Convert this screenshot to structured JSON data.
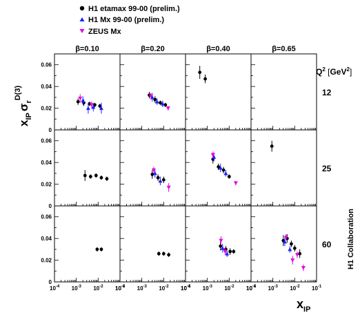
{
  "chart_data": {
    "type": "scatter",
    "title": "",
    "xlabel": "x_IP",
    "ylabel": "x_IP σ_r^D(3)",
    "x_scale": "log",
    "xlim": [
      0.0001,
      0.1
    ],
    "ylim": [
      0,
      0.07
    ],
    "x_tick_labels": [
      "10^-4",
      "10^-3",
      "10^-2",
      "10^-1"
    ],
    "y_tick_labels": [
      "0",
      "0.02",
      "0.04",
      "0.06"
    ],
    "beta_labels": [
      "β=0.10",
      "β=0.20",
      "β=0.40",
      "β=0.65"
    ],
    "q2_header": "Q² [GeV²]",
    "q2_values": [
      "12",
      "25",
      "60"
    ],
    "collaboration_label": "H1 Collaboration",
    "legend_placement": "top-left",
    "series": [
      {
        "name": "H1 etamax 99-00 (prelim.)",
        "marker": "circle",
        "color": "#000000",
        "points": [
          {
            "q2": "12",
            "beta": "0.10",
            "x": 0.0012,
            "y": 0.026,
            "err": 0.003
          },
          {
            "q2": "12",
            "beta": "0.10",
            "x": 0.0022,
            "y": 0.025,
            "err": 0.003
          },
          {
            "q2": "12",
            "beta": "0.10",
            "x": 0.004,
            "y": 0.024,
            "err": 0.002
          },
          {
            "q2": "12",
            "beta": "0.10",
            "x": 0.007,
            "y": 0.023,
            "err": 0.002
          },
          {
            "q2": "12",
            "beta": "0.10",
            "x": 0.012,
            "y": 0.022,
            "err": 0.002
          },
          {
            "q2": "12",
            "beta": "0.20",
            "x": 0.0022,
            "y": 0.032,
            "err": 0.003
          },
          {
            "q2": "12",
            "beta": "0.20",
            "x": 0.004,
            "y": 0.028,
            "err": 0.003
          },
          {
            "q2": "12",
            "beta": "0.20",
            "x": 0.007,
            "y": 0.025,
            "err": 0.002
          },
          {
            "q2": "12",
            "beta": "0.20",
            "x": 0.012,
            "y": 0.023,
            "err": 0.002
          },
          {
            "q2": "12",
            "beta": "0.40",
            "x": 0.00045,
            "y": 0.053,
            "err": 0.006
          },
          {
            "q2": "12",
            "beta": "0.40",
            "x": 0.0008,
            "y": 0.047,
            "err": 0.004
          },
          {
            "q2": "25",
            "beta": "0.10",
            "x": 0.0025,
            "y": 0.028,
            "err": 0.005
          },
          {
            "q2": "25",
            "beta": "0.10",
            "x": 0.0045,
            "y": 0.027,
            "err": 0.002
          },
          {
            "q2": "25",
            "beta": "0.10",
            "x": 0.008,
            "y": 0.028,
            "err": 0.002
          },
          {
            "q2": "25",
            "beta": "0.10",
            "x": 0.014,
            "y": 0.026,
            "err": 0.002
          },
          {
            "q2": "25",
            "beta": "0.10",
            "x": 0.025,
            "y": 0.025,
            "err": 0.002
          },
          {
            "q2": "25",
            "beta": "0.20",
            "x": 0.003,
            "y": 0.029,
            "err": 0.004
          },
          {
            "q2": "25",
            "beta": "0.20",
            "x": 0.0055,
            "y": 0.026,
            "err": 0.003
          },
          {
            "q2": "25",
            "beta": "0.20",
            "x": 0.01,
            "y": 0.024,
            "err": 0.003
          },
          {
            "q2": "25",
            "beta": "0.40",
            "x": 0.0018,
            "y": 0.043,
            "err": 0.004
          },
          {
            "q2": "25",
            "beta": "0.40",
            "x": 0.0032,
            "y": 0.036,
            "err": 0.003
          },
          {
            "q2": "25",
            "beta": "0.40",
            "x": 0.0055,
            "y": 0.033,
            "err": 0.003
          },
          {
            "q2": "25",
            "beta": "0.40",
            "x": 0.01,
            "y": 0.027,
            "err": 0.002
          },
          {
            "q2": "25",
            "beta": "0.65",
            "x": 0.0009,
            "y": 0.055,
            "err": 0.005
          },
          {
            "q2": "60",
            "beta": "0.10",
            "x": 0.009,
            "y": 0.03,
            "err": 0.002
          },
          {
            "q2": "60",
            "beta": "0.10",
            "x": 0.014,
            "y": 0.03,
            "err": 0.002
          },
          {
            "q2": "60",
            "beta": "0.20",
            "x": 0.006,
            "y": 0.026,
            "err": 0.002
          },
          {
            "q2": "60",
            "beta": "0.20",
            "x": 0.01,
            "y": 0.026,
            "err": 0.002
          },
          {
            "q2": "60",
            "beta": "0.20",
            "x": 0.017,
            "y": 0.025,
            "err": 0.002
          },
          {
            "q2": "60",
            "beta": "0.40",
            "x": 0.004,
            "y": 0.033,
            "err": 0.004
          },
          {
            "q2": "60",
            "beta": "0.40",
            "x": 0.007,
            "y": 0.03,
            "err": 0.003
          },
          {
            "q2": "60",
            "beta": "0.40",
            "x": 0.011,
            "y": 0.028,
            "err": 0.003
          },
          {
            "q2": "60",
            "beta": "0.40",
            "x": 0.016,
            "y": 0.028,
            "err": 0.002
          },
          {
            "q2": "60",
            "beta": "0.65",
            "x": 0.003,
            "y": 0.038,
            "err": 0.005
          },
          {
            "q2": "60",
            "beta": "0.65",
            "x": 0.0045,
            "y": 0.04,
            "err": 0.004
          },
          {
            "q2": "60",
            "beta": "0.65",
            "x": 0.007,
            "y": 0.035,
            "err": 0.003
          },
          {
            "q2": "60",
            "beta": "0.65",
            "x": 0.01,
            "y": 0.031,
            "err": 0.003
          },
          {
            "q2": "60",
            "beta": "0.65",
            "x": 0.017,
            "y": 0.026,
            "err": 0.004
          }
        ]
      },
      {
        "name": "H1 Mx 99-00 (prelim.)",
        "marker": "triangle-up",
        "color": "#1f1fff",
        "points": [
          {
            "q2": "12",
            "beta": "0.10",
            "x": 0.002,
            "y": 0.027,
            "err": 0.004
          },
          {
            "q2": "12",
            "beta": "0.10",
            "x": 0.0035,
            "y": 0.02,
            "err": 0.005
          },
          {
            "q2": "12",
            "beta": "0.10",
            "x": 0.006,
            "y": 0.021,
            "err": 0.004
          },
          {
            "q2": "12",
            "beta": "0.10",
            "x": 0.014,
            "y": 0.02,
            "err": 0.005
          },
          {
            "q2": "12",
            "beta": "0.20",
            "x": 0.003,
            "y": 0.03,
            "err": 0.004
          },
          {
            "q2": "12",
            "beta": "0.20",
            "x": 0.005,
            "y": 0.026,
            "err": 0.003
          },
          {
            "q2": "12",
            "beta": "0.20",
            "x": 0.009,
            "y": 0.024,
            "err": 0.003
          },
          {
            "q2": "25",
            "beta": "0.20",
            "x": 0.004,
            "y": 0.03,
            "err": 0.004
          },
          {
            "q2": "25",
            "beta": "0.20",
            "x": 0.007,
            "y": 0.023,
            "err": 0.004
          },
          {
            "q2": "25",
            "beta": "0.40",
            "x": 0.002,
            "y": 0.045,
            "err": 0.004
          },
          {
            "q2": "25",
            "beta": "0.40",
            "x": 0.004,
            "y": 0.035,
            "err": 0.004
          },
          {
            "q2": "25",
            "beta": "0.40",
            "x": 0.007,
            "y": 0.03,
            "err": 0.003
          },
          {
            "q2": "60",
            "beta": "0.40",
            "x": 0.005,
            "y": 0.031,
            "err": 0.004
          },
          {
            "q2": "60",
            "beta": "0.40",
            "x": 0.008,
            "y": 0.026,
            "err": 0.003
          },
          {
            "q2": "60",
            "beta": "0.65",
            "x": 0.0035,
            "y": 0.037,
            "err": 0.004
          },
          {
            "q2": "60",
            "beta": "0.65",
            "x": 0.006,
            "y": 0.03,
            "err": 0.003
          }
        ]
      },
      {
        "name": "ZEUS Mx",
        "marker": "triangle-down",
        "color": "#e600e6",
        "points": [
          {
            "q2": "12",
            "beta": "0.10",
            "x": 0.0015,
            "y": 0.029,
            "err": 0.004
          },
          {
            "q2": "12",
            "beta": "0.10",
            "x": 0.005,
            "y": 0.023,
            "err": 0.003
          },
          {
            "q2": "12",
            "beta": "0.20",
            "x": 0.0026,
            "y": 0.031,
            "err": 0.003
          },
          {
            "q2": "12",
            "beta": "0.20",
            "x": 0.016,
            "y": 0.02,
            "err": 0.002
          },
          {
            "q2": "25",
            "beta": "0.20",
            "x": 0.0035,
            "y": 0.033,
            "err": 0.003
          },
          {
            "q2": "25",
            "beta": "0.20",
            "x": 0.017,
            "y": 0.017,
            "err": 0.004
          },
          {
            "q2": "25",
            "beta": "0.40",
            "x": 0.0018,
            "y": 0.047,
            "err": 0.003
          },
          {
            "q2": "25",
            "beta": "0.40",
            "x": 0.02,
            "y": 0.021,
            "err": 0.002
          },
          {
            "q2": "60",
            "beta": "0.40",
            "x": 0.0042,
            "y": 0.038,
            "err": 0.004
          },
          {
            "q2": "60",
            "beta": "0.40",
            "x": 0.0065,
            "y": 0.028,
            "err": 0.003
          },
          {
            "q2": "60",
            "beta": "0.65",
            "x": 0.004,
            "y": 0.041,
            "err": 0.003
          },
          {
            "q2": "60",
            "beta": "0.65",
            "x": 0.008,
            "y": 0.02,
            "err": 0.004
          },
          {
            "q2": "60",
            "beta": "0.65",
            "x": 0.013,
            "y": 0.025,
            "err": 0.003
          },
          {
            "q2": "60",
            "beta": "0.65",
            "x": 0.025,
            "y": 0.013,
            "err": 0.003
          }
        ]
      }
    ]
  }
}
